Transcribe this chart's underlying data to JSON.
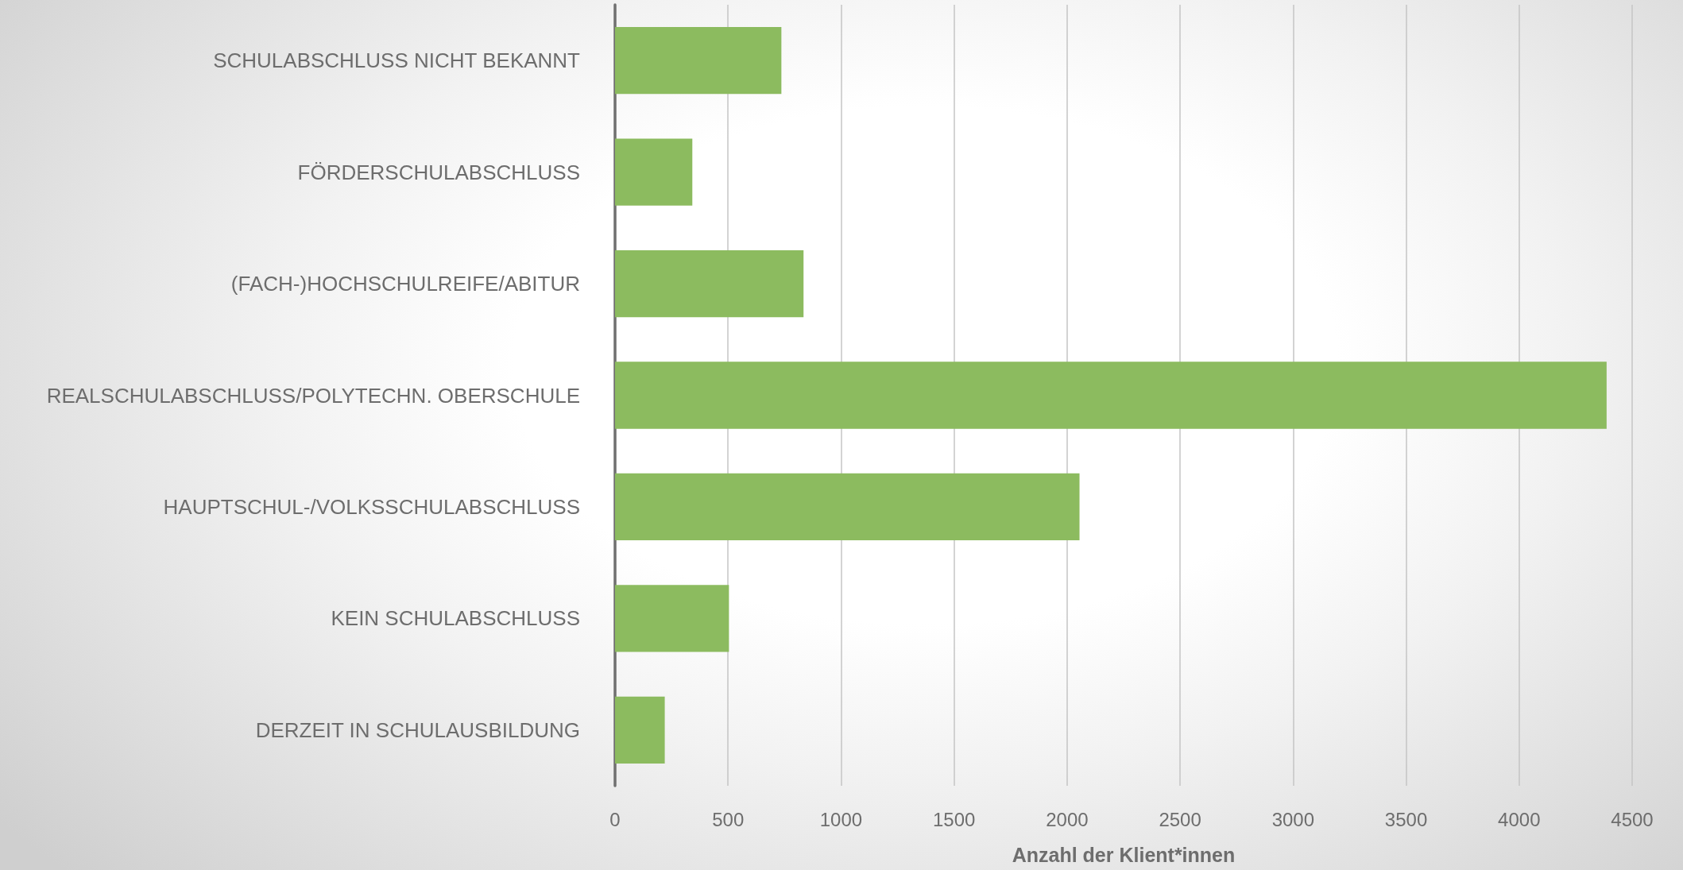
{
  "chart_data": {
    "type": "bar",
    "orientation": "horizontal",
    "categories": [
      "SCHULABSCHLUSS NICHT BEKANNT",
      "FÖRDERSCHULABSCHLUSS",
      "(FACH-)HOCHSCHULREIFE/ABITUR",
      "REALSCHULABSCHLUSS/POLYTECHN. OBERSCHULE",
      "HAUPTSCHUL-/VOLKSSCHULABSCHLUSS",
      "KEIN SCHULABSCHLUSS",
      "DERZEIT IN SCHULAUSBILDUNG"
    ],
    "values": [
      736,
      342,
      834,
      4387,
      2055,
      504,
      220
    ],
    "color": "#8cbb5f",
    "xlabel": "Anzahl der Klient*innen",
    "xlim": [
      0,
      4500
    ],
    "xticks": [
      0,
      500,
      1000,
      1500,
      2000,
      2500,
      3000,
      3500,
      4000,
      4500
    ],
    "grid": "x"
  }
}
